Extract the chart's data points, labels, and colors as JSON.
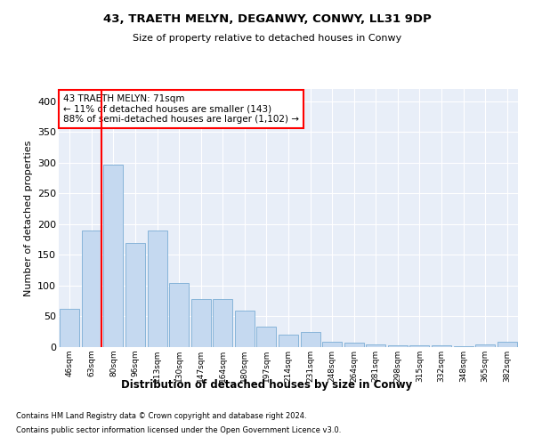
{
  "title1": "43, TRAETH MELYN, DEGANWY, CONWY, LL31 9DP",
  "title2": "Size of property relative to detached houses in Conwy",
  "xlabel": "Distribution of detached houses by size in Conwy",
  "ylabel": "Number of detached properties",
  "categories": [
    "46sqm",
    "63sqm",
    "80sqm",
    "96sqm",
    "113sqm",
    "130sqm",
    "147sqm",
    "164sqm",
    "180sqm",
    "197sqm",
    "214sqm",
    "231sqm",
    "248sqm",
    "264sqm",
    "281sqm",
    "298sqm",
    "315sqm",
    "332sqm",
    "348sqm",
    "365sqm",
    "382sqm"
  ],
  "values": [
    63,
    190,
    297,
    170,
    190,
    104,
    78,
    78,
    60,
    33,
    20,
    24,
    9,
    7,
    5,
    3,
    3,
    3,
    1,
    5,
    8
  ],
  "bar_color": "#c5d9f0",
  "bar_edge_color": "#7aadd4",
  "annotation_text": "43 TRAETH MELYN: 71sqm\n← 11% of detached houses are smaller (143)\n88% of semi-detached houses are larger (1,102) →",
  "annotation_box_color": "white",
  "annotation_box_edge": "red",
  "vline_color": "red",
  "footer1": "Contains HM Land Registry data © Crown copyright and database right 2024.",
  "footer2": "Contains public sector information licensed under the Open Government Licence v3.0.",
  "ylim": [
    0,
    420
  ],
  "yticks": [
    0,
    50,
    100,
    150,
    200,
    250,
    300,
    350,
    400
  ],
  "background_color": "#e8eef8"
}
